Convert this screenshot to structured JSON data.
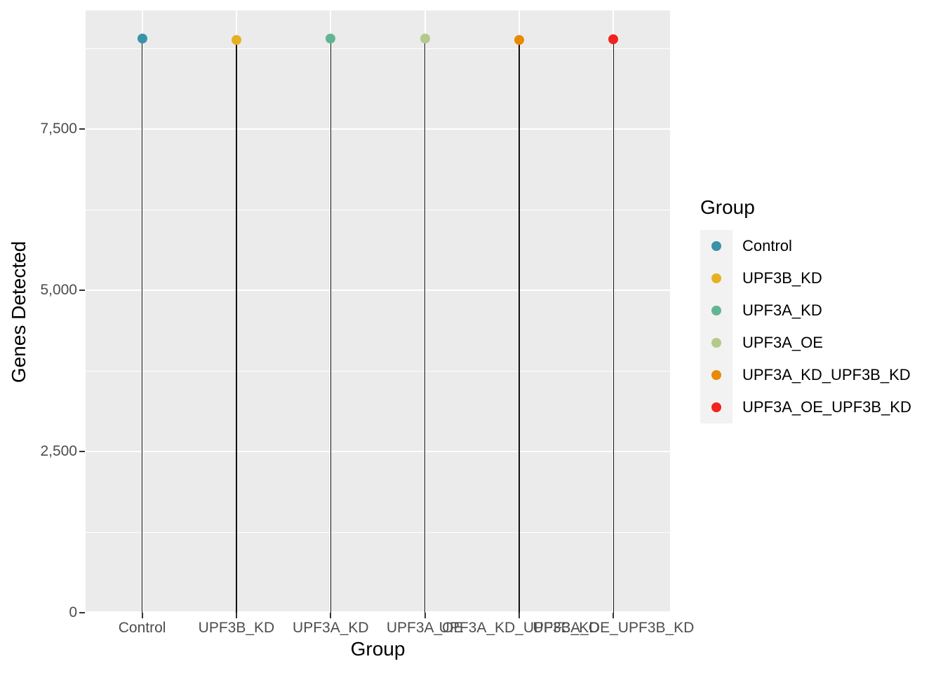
{
  "chart_data": {
    "type": "lollipop",
    "title": "",
    "xlabel": "Group",
    "ylabel": "Genes Detected",
    "categories": [
      "Control",
      "UPF3B_KD",
      "UPF3A_KD",
      "UPF3A_OE",
      "UPF3A_KD_UPF3B_KD",
      "UPF3A_OE_UPF3B_KD"
    ],
    "values": [
      8905,
      8885,
      8900,
      8905,
      8885,
      8895
    ],
    "point_colors": [
      "#3A93A9",
      "#E7B020",
      "#62B592",
      "#B5C98B",
      "#E88A06",
      "#F2221E"
    ],
    "ylim": [
      0,
      9340
    ],
    "yticks": {
      "values": [
        0,
        2500,
        5000,
        7500
      ],
      "labels": [
        "0",
        "2,500",
        "5,000",
        "7,500"
      ]
    },
    "yticks_minor": [
      1250,
      3750,
      6250,
      8750
    ],
    "grid": true,
    "legend": {
      "title": "Group",
      "position": "right"
    },
    "style": {
      "panel_bg": "#EBEBEB",
      "grid_color": "#FFFFFF",
      "stem_color": "#111111",
      "axis_text_color": "#4D4D4D",
      "axis_tick_color": "#333333",
      "title_color": "#000000",
      "legend_key_bg": "#F2F2F2"
    }
  }
}
